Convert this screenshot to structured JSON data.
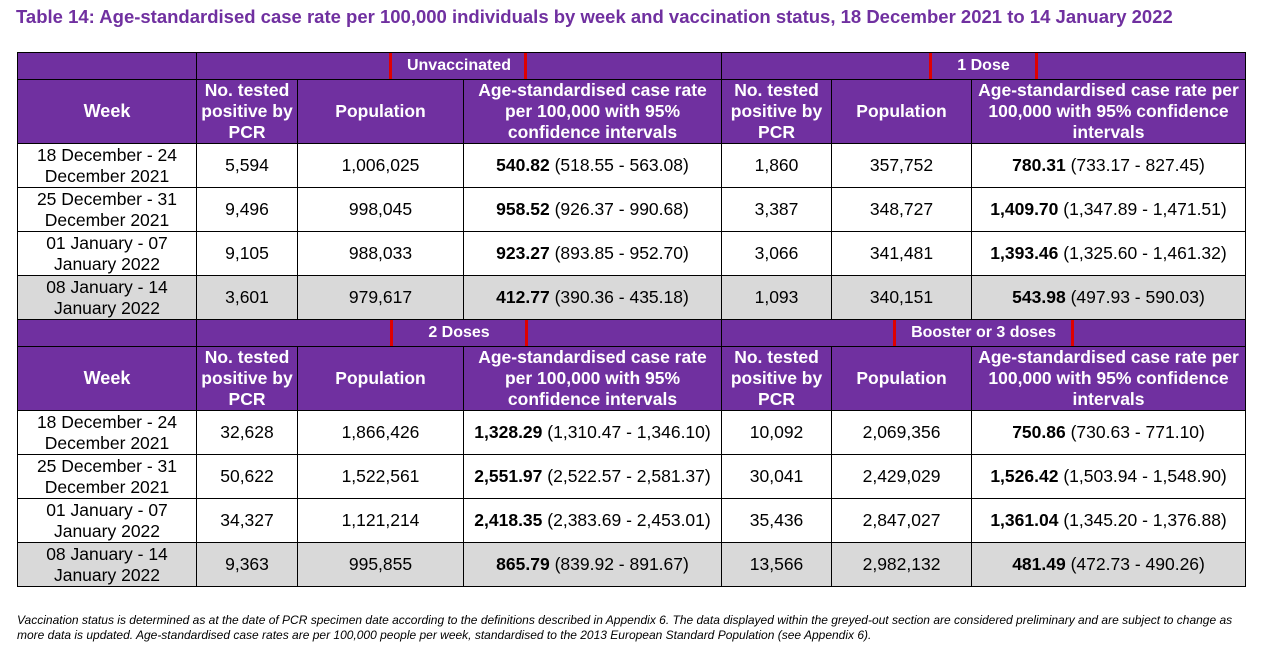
{
  "title": "Table 14: Age-standardised case rate per 100,000 individuals by week and vaccination status, 18 December 2021 to 14 January 2022",
  "columns": {
    "week": "Week",
    "tested": "No. tested positive by PCR",
    "population": "Population",
    "rate": "Age-standardised case rate per 100,000 with 95% confidence intervals"
  },
  "weeks": [
    "18 December - 24 December 2021",
    "25 December - 31 December 2021",
    "01 January - 07 January 2022",
    "08 January - 14 January 2022"
  ],
  "tables": [
    {
      "groups": [
        {
          "name": "Unvaccinated",
          "rows": [
            {
              "tested": "5,594",
              "population": "1,006,025",
              "rate": "540.82",
              "ci": "(518.55 - 563.08)"
            },
            {
              "tested": "9,496",
              "population": "998,045",
              "rate": "958.52",
              "ci": "(926.37 - 990.68)"
            },
            {
              "tested": "9,105",
              "population": "988,033",
              "rate": "923.27",
              "ci": "(893.85 - 952.70)"
            },
            {
              "tested": "3,601",
              "population": "979,617",
              "rate": "412.77",
              "ci": "(390.36 - 435.18)"
            }
          ]
        },
        {
          "name": "1 Dose",
          "rows": [
            {
              "tested": "1,860",
              "population": "357,752",
              "rate": "780.31",
              "ci": "(733.17 - 827.45)"
            },
            {
              "tested": "3,387",
              "population": "348,727",
              "rate": "1,409.70",
              "ci": "(1,347.89 - 1,471.51)"
            },
            {
              "tested": "3,066",
              "population": "341,481",
              "rate": "1,393.46",
              "ci": "(1,325.60 - 1,461.32)"
            },
            {
              "tested": "1,093",
              "population": "340,151",
              "rate": "543.98",
              "ci": "(497.93 - 590.03)"
            }
          ]
        }
      ]
    },
    {
      "groups": [
        {
          "name": "2 Doses",
          "rows": [
            {
              "tested": "32,628",
              "population": "1,866,426",
              "rate": "1,328.29",
              "ci": "(1,310.47 - 1,346.10)"
            },
            {
              "tested": "50,622",
              "population": "1,522,561",
              "rate": "2,551.97",
              "ci": "(2,522.57 - 2,581.37)"
            },
            {
              "tested": "34,327",
              "population": "1,121,214",
              "rate": "2,418.35",
              "ci": "(2,383.69 - 2,453.01)"
            },
            {
              "tested": "9,363",
              "population": "995,855",
              "rate": "865.79",
              "ci": "(839.92 - 891.67)"
            }
          ]
        },
        {
          "name": "Booster or 3 doses",
          "rows": [
            {
              "tested": "10,092",
              "population": "2,069,356",
              "rate": "750.86",
              "ci": "(730.63 - 771.10)"
            },
            {
              "tested": "30,041",
              "population": "2,429,029",
              "rate": "1,526.42",
              "ci": "(1,503.94 - 1,548.90)"
            },
            {
              "tested": "35,436",
              "population": "2,847,027",
              "rate": "1,361.04",
              "ci": "(1,345.20 - 1,376.88)"
            },
            {
              "tested": "13,566",
              "population": "2,982,132",
              "rate": "481.49",
              "ci": "(472.73 - 490.26)"
            }
          ]
        }
      ]
    }
  ],
  "footnote": "Vaccination status is determined as at the date of PCR specimen date according to the definitions described in Appendix 6. The data displayed within the greyed-out section are considered preliminary and are subject to change as more data is updated. Age-standardised case rates are per 100,000 people per week, standardised to the 2013 European Standard Population (see Appendix 6).",
  "colors": {
    "header": "#7030a0",
    "highlight_box": "#e00000",
    "preliminary_row": "#d9d9d9"
  }
}
